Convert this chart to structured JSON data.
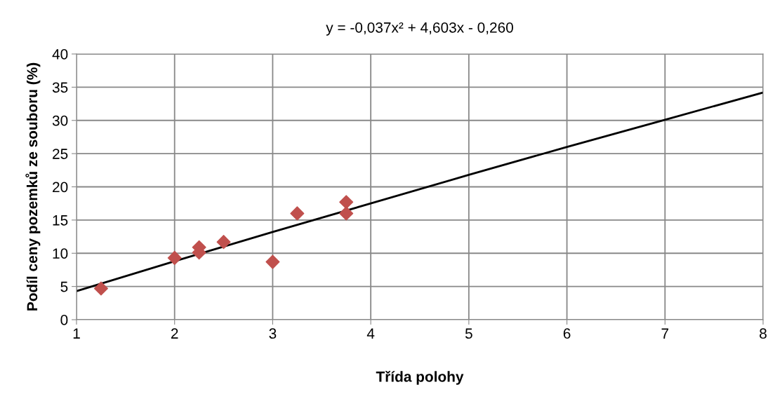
{
  "chart_data": {
    "type": "scatter",
    "title": "y = -0,037x² + 4,603x - 0,260",
    "xlabel": "Třída polohy",
    "ylabel": "Podíl ceny pozemků ze souboru (%)",
    "xlim": [
      1,
      8
    ],
    "xticks": [
      1,
      2,
      3,
      4,
      5,
      6,
      7,
      8
    ],
    "ylim": [
      0,
      40
    ],
    "yticks": [
      0,
      5,
      10,
      15,
      20,
      25,
      30,
      35,
      40
    ],
    "grid": true,
    "legend": false,
    "series": [
      {
        "color": "#c0504d",
        "marker": "diamond",
        "x": [
          1.25,
          2.0,
          2.25,
          2.25,
          2.5,
          3.0,
          3.25,
          3.75,
          3.75
        ],
        "values": [
          4.7,
          9.3,
          10.9,
          10.1,
          11.7,
          8.7,
          16.0,
          17.7,
          16.0
        ]
      },
      {
        "type": "line",
        "color": "#000000",
        "marker": "none",
        "line_style": "solid",
        "x": [
          1,
          2,
          3,
          4,
          5,
          6,
          7,
          8
        ],
        "values": [
          4.3,
          8.8,
          13.2,
          17.5,
          21.8,
          26.0,
          30.1,
          34.2
        ]
      }
    ]
  }
}
